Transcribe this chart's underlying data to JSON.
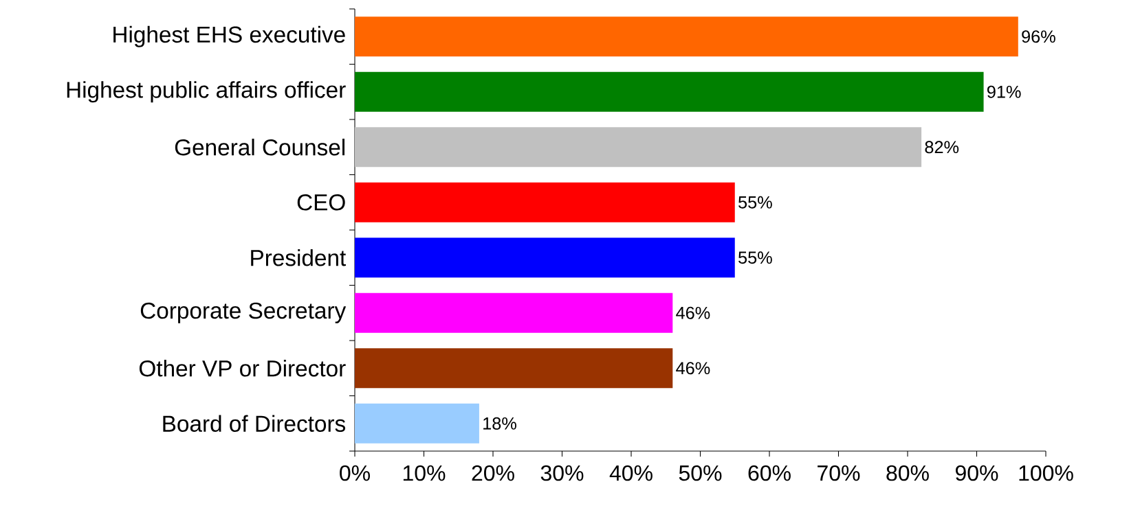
{
  "chart_data": {
    "type": "bar",
    "orientation": "horizontal",
    "categories": [
      "Highest EHS executive",
      "Highest public affairs officer",
      "General Counsel",
      "CEO",
      "President",
      "Corporate Secretary",
      "Other VP or Director",
      "Board of Directors"
    ],
    "values": [
      96,
      91,
      82,
      55,
      55,
      46,
      46,
      18
    ],
    "colors": [
      "#ff6600",
      "#008000",
      "#c0c0c0",
      "#ff0000",
      "#0000ff",
      "#ff00ff",
      "#993300",
      "#99ccff"
    ],
    "value_labels": [
      "96%",
      "91%",
      "82%",
      "55%",
      "55%",
      "46%",
      "46%",
      "18%"
    ],
    "xlim": [
      0,
      100
    ],
    "xticks": [
      {
        "value": 0,
        "label": "0%"
      },
      {
        "value": 10,
        "label": "10%"
      },
      {
        "value": 20,
        "label": "20%"
      },
      {
        "value": 30,
        "label": "30%"
      },
      {
        "value": 40,
        "label": "40%"
      },
      {
        "value": 50,
        "label": "50%"
      },
      {
        "value": 60,
        "label": "60%"
      },
      {
        "value": 70,
        "label": "70%"
      },
      {
        "value": 80,
        "label": "80%"
      },
      {
        "value": 90,
        "label": "90%"
      },
      {
        "value": 100,
        "label": "100%"
      }
    ],
    "grid": false
  }
}
